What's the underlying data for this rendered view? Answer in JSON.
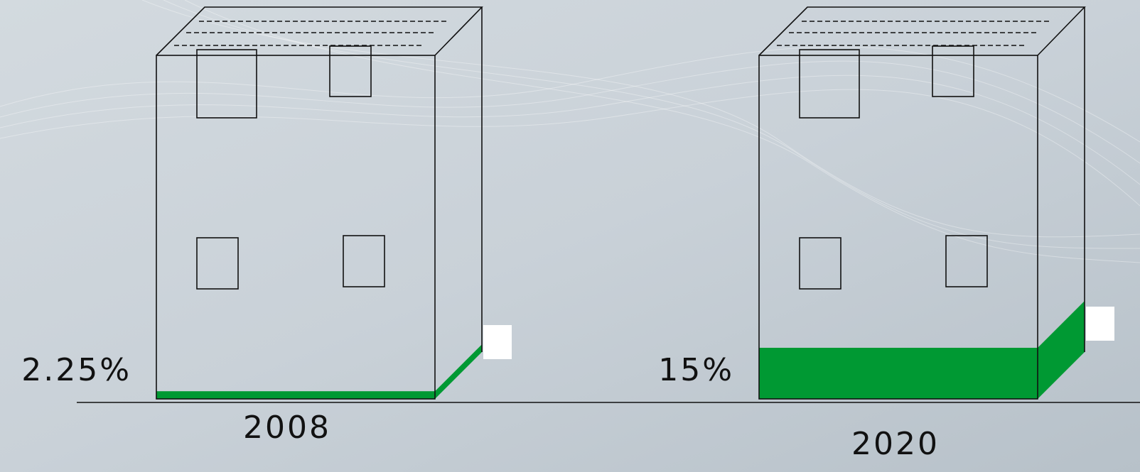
{
  "chart_data": {
    "type": "bar",
    "categories": [
      "2008",
      "2020"
    ],
    "values": [
      2.25,
      15
    ],
    "value_labels": [
      "2.25%",
      "15%"
    ],
    "color": "#009933"
  }
}
